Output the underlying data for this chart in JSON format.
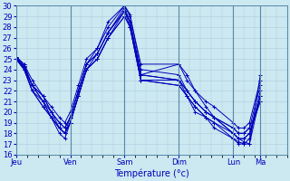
{
  "xlabel": "Température (°c)",
  "xlim": [
    0,
    5.0
  ],
  "ylim": [
    16,
    30
  ],
  "yticks": [
    16,
    17,
    18,
    19,
    20,
    21,
    22,
    23,
    24,
    25,
    26,
    27,
    28,
    29,
    30
  ],
  "xtick_positions": [
    0,
    1.0,
    2.0,
    3.0,
    4.0,
    4.5
  ],
  "xtick_labels": [
    "Jeu",
    "Ven",
    "Sam",
    "Dim",
    "Lun",
    "Ma"
  ],
  "bg_color": "#cce8f0",
  "line_color": "#0000bb",
  "grid_color": "#aaccdd",
  "marker": "+",
  "series": [
    [
      0.0,
      25.2,
      0.15,
      24.5,
      0.3,
      23.0,
      0.5,
      21.5,
      0.65,
      20.0,
      0.8,
      18.5,
      0.9,
      18.0,
      1.0,
      19.5,
      1.15,
      22.0,
      1.3,
      24.5,
      1.5,
      26.0,
      1.7,
      28.0,
      2.0,
      30.0,
      2.1,
      29.2,
      2.3,
      24.0,
      3.0,
      23.5,
      3.15,
      22.0,
      3.3,
      21.0,
      3.5,
      20.0,
      3.65,
      19.5,
      4.0,
      18.0,
      4.1,
      17.5,
      4.2,
      17.2,
      4.3,
      17.0,
      4.5,
      23.5
    ],
    [
      0.0,
      25.0,
      0.15,
      24.2,
      0.3,
      22.5,
      0.5,
      21.0,
      0.65,
      19.5,
      0.8,
      18.0,
      0.9,
      17.5,
      1.0,
      19.0,
      1.15,
      21.5,
      1.3,
      24.0,
      1.5,
      25.5,
      1.7,
      27.5,
      2.0,
      29.8,
      2.1,
      28.5,
      2.3,
      23.5,
      3.0,
      23.0,
      3.15,
      21.5,
      3.3,
      20.5,
      3.5,
      19.5,
      3.65,
      19.0,
      4.0,
      17.5,
      4.1,
      17.0,
      4.2,
      17.0,
      4.3,
      17.0,
      4.5,
      21.5
    ],
    [
      0.0,
      25.0,
      0.15,
      24.0,
      0.3,
      22.0,
      0.5,
      21.0,
      0.65,
      19.5,
      0.8,
      18.5,
      0.9,
      18.0,
      1.0,
      19.0,
      1.15,
      21.5,
      1.3,
      24.0,
      1.5,
      25.0,
      1.7,
      27.0,
      2.0,
      29.5,
      2.1,
      28.0,
      2.3,
      23.0,
      3.0,
      22.5,
      3.15,
      21.5,
      3.3,
      20.0,
      3.5,
      19.5,
      3.65,
      18.5,
      4.0,
      17.5,
      4.1,
      17.2,
      4.2,
      17.0,
      4.3,
      17.5,
      4.5,
      22.0
    ],
    [
      0.0,
      25.1,
      0.15,
      24.3,
      0.3,
      22.5,
      0.5,
      21.5,
      0.65,
      20.0,
      0.8,
      19.0,
      0.9,
      18.5,
      1.0,
      19.5,
      1.15,
      22.0,
      1.3,
      24.5,
      1.5,
      25.5,
      1.7,
      27.5,
      2.0,
      29.5,
      2.1,
      28.5,
      2.3,
      23.5,
      3.0,
      23.0,
      3.15,
      22.0,
      3.3,
      21.0,
      3.5,
      20.0,
      3.65,
      19.5,
      4.0,
      18.5,
      4.1,
      18.0,
      4.2,
      18.0,
      4.3,
      18.5,
      4.5,
      22.5
    ],
    [
      0.0,
      25.0,
      0.15,
      24.0,
      0.3,
      22.0,
      0.5,
      20.5,
      0.65,
      19.5,
      0.8,
      18.5,
      0.9,
      18.0,
      1.0,
      19.0,
      1.15,
      21.5,
      1.3,
      24.0,
      1.5,
      25.0,
      1.7,
      27.0,
      2.0,
      29.0,
      2.1,
      28.0,
      2.3,
      23.0,
      3.0,
      22.5,
      3.15,
      21.5,
      3.3,
      20.5,
      3.5,
      19.5,
      3.65,
      19.0,
      4.0,
      18.0,
      4.1,
      17.5,
      4.2,
      17.5,
      4.3,
      18.0,
      4.5,
      21.5
    ],
    [
      0.0,
      25.2,
      0.15,
      24.5,
      0.3,
      22.5,
      0.5,
      21.0,
      0.65,
      20.0,
      0.8,
      19.0,
      0.9,
      18.5,
      1.0,
      19.5,
      1.15,
      22.0,
      1.3,
      24.5,
      1.5,
      25.5,
      1.7,
      27.5,
      2.0,
      29.5,
      2.1,
      28.5,
      2.3,
      23.5,
      3.0,
      24.5,
      3.15,
      23.0,
      3.3,
      22.0,
      3.5,
      20.5,
      3.65,
      19.5,
      4.0,
      18.5,
      4.1,
      18.0,
      4.2,
      18.0,
      4.3,
      18.5,
      4.5,
      21.0
    ],
    [
      0.0,
      25.1,
      0.15,
      24.2,
      0.3,
      22.0,
      0.5,
      20.5,
      0.65,
      19.5,
      0.8,
      18.5,
      0.9,
      18.0,
      1.0,
      19.0,
      1.15,
      21.5,
      1.3,
      24.0,
      1.5,
      25.0,
      1.7,
      27.0,
      2.0,
      29.0,
      2.1,
      28.0,
      2.3,
      23.0,
      3.0,
      23.0,
      3.15,
      22.0,
      3.3,
      21.0,
      3.5,
      20.0,
      3.65,
      19.5,
      4.0,
      18.0,
      4.1,
      17.5,
      4.2,
      17.5,
      4.3,
      18.0,
      4.5,
      21.0
    ],
    [
      0.0,
      25.1,
      0.15,
      24.3,
      0.3,
      22.5,
      0.5,
      21.5,
      0.65,
      20.5,
      0.8,
      19.5,
      0.9,
      19.0,
      1.0,
      20.0,
      1.15,
      22.5,
      1.3,
      25.0,
      1.5,
      26.0,
      1.7,
      28.5,
      2.0,
      30.0,
      2.1,
      29.0,
      2.3,
      24.5,
      3.0,
      24.5,
      3.15,
      23.5,
      3.3,
      22.0,
      3.5,
      21.0,
      3.65,
      20.5,
      4.0,
      19.0,
      4.1,
      18.5,
      4.2,
      18.5,
      4.3,
      19.0,
      4.5,
      23.0
    ]
  ]
}
